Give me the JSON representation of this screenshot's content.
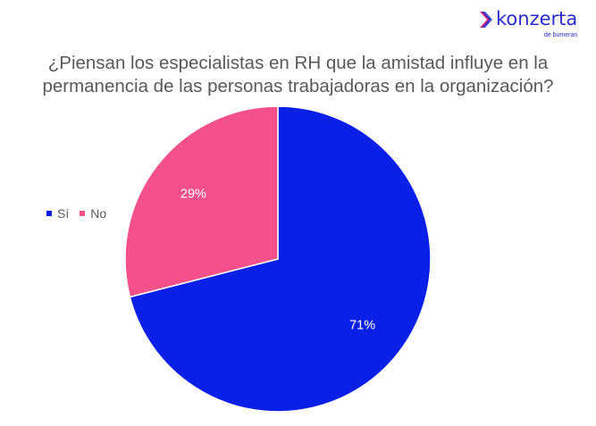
{
  "logo": {
    "name": "konzerta",
    "subtitle": "de bumeran",
    "color": "#2a2bd0",
    "icon": "chevron-right-icon"
  },
  "chart_data": {
    "type": "pie",
    "title": "¿Piensan los especialistas en RH que la amistad influye en la permanencia de las personas trabajadoras en la organización?",
    "title_lines": [
      "¿Piensan los especialistas en RH que la amistad influye en la",
      "permanencia de las personas trabajadoras en la organización?"
    ],
    "categories": [
      "Sí",
      "No"
    ],
    "values": [
      71,
      29
    ],
    "labels": [
      "71%",
      "29%"
    ],
    "colors": [
      "#0a1fe8",
      "#f4508a"
    ],
    "legend_position": "left",
    "unit": "%"
  }
}
